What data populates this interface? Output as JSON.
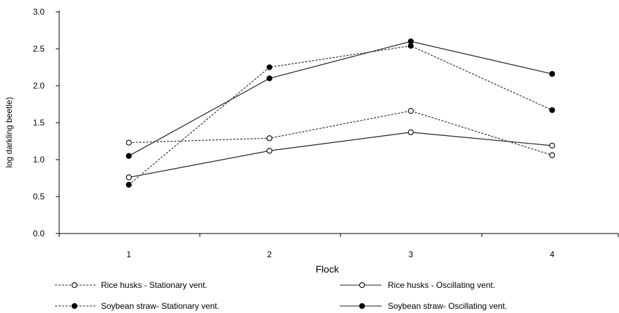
{
  "chart_data": {
    "type": "line",
    "title": "",
    "xlabel": "Flock",
    "ylabel": "log darkling beetle)",
    "x": [
      1,
      2,
      3,
      4
    ],
    "ylim": [
      0.0,
      3.0
    ],
    "yticks": [
      "0.0",
      "0.5",
      "1.0",
      "1.5",
      "2.0",
      "2.5",
      "3.0"
    ],
    "xticks": [
      "1",
      "2",
      "3",
      "4"
    ],
    "grid": false,
    "legend_placement": "bottom",
    "series": [
      {
        "name": "Rice husks -  Stationary vent.",
        "values": [
          1.23,
          1.29,
          1.66,
          1.06
        ],
        "dash": "dashed",
        "marker": "open"
      },
      {
        "name": "Rice husks -  Oscillating vent.",
        "values": [
          0.76,
          1.12,
          1.37,
          1.19
        ],
        "dash": "solid",
        "marker": "open"
      },
      {
        "name": "Soybean straw- Stationary vent.",
        "values": [
          0.66,
          2.25,
          2.54,
          1.67
        ],
        "dash": "dashed",
        "marker": "filled"
      },
      {
        "name": "Soybean straw- Oscillating vent.",
        "values": [
          1.05,
          2.1,
          2.6,
          2.16
        ],
        "dash": "solid",
        "marker": "filled"
      }
    ]
  }
}
